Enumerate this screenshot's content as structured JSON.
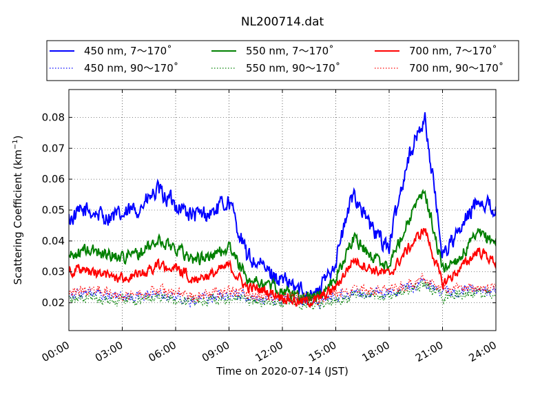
{
  "chart_data": {
    "type": "line",
    "title": "NL200714.dat",
    "xlabel": "Time on 2020-07-14 (JST)",
    "ylabel_main": "Scattering Coefficient (km",
    "ylabel_sup": "−1",
    "ylabel_close": ")",
    "xlim_hours": [
      0,
      24
    ],
    "ylim": [
      0.011,
      0.089
    ],
    "x_ticks": [
      "00:00",
      "03:00",
      "06:00",
      "09:00",
      "12:00",
      "15:00",
      "18:00",
      "21:00",
      "24:00"
    ],
    "x_tick_hours": [
      0,
      3,
      6,
      9,
      12,
      15,
      18,
      21,
      24
    ],
    "y_ticks": [
      "0.02",
      "0.03",
      "0.04",
      "0.05",
      "0.06",
      "0.07",
      "0.08"
    ],
    "y_tick_values": [
      0.02,
      0.03,
      0.04,
      0.05,
      0.06,
      0.07,
      0.08
    ],
    "grid": true,
    "legend_position": "top",
    "key_hours": [
      0,
      1,
      2,
      3,
      4,
      5,
      6,
      7,
      8,
      9,
      10,
      11,
      12,
      13,
      14,
      15,
      16,
      17,
      18,
      19,
      20,
      21,
      22,
      23,
      24
    ],
    "series": [
      {
        "name": "450 nm, 7～170˚",
        "color": "#0000ff",
        "style": "solid",
        "noise": 0.0025,
        "values": [
          0.047,
          0.05,
          0.048,
          0.048,
          0.051,
          0.056,
          0.052,
          0.048,
          0.049,
          0.053,
          0.035,
          0.031,
          0.027,
          0.024,
          0.023,
          0.034,
          0.056,
          0.044,
          0.038,
          0.066,
          0.08,
          0.036,
          0.043,
          0.054,
          0.05
        ]
      },
      {
        "name": "450 nm, 90～170˚",
        "color": "#0000ff",
        "style": "dotted",
        "noise": 0.0015,
        "values": [
          0.023,
          0.023,
          0.022,
          0.022,
          0.022,
          0.023,
          0.022,
          0.021,
          0.022,
          0.023,
          0.022,
          0.021,
          0.021,
          0.021,
          0.02,
          0.022,
          0.023,
          0.023,
          0.023,
          0.025,
          0.027,
          0.023,
          0.024,
          0.024,
          0.024
        ]
      },
      {
        "name": "550 nm, 7～170˚",
        "color": "#008000",
        "style": "solid",
        "noise": 0.0018,
        "values": [
          0.035,
          0.037,
          0.036,
          0.035,
          0.036,
          0.04,
          0.038,
          0.034,
          0.035,
          0.038,
          0.028,
          0.026,
          0.024,
          0.022,
          0.022,
          0.028,
          0.041,
          0.035,
          0.032,
          0.046,
          0.056,
          0.031,
          0.035,
          0.042,
          0.04
        ]
      },
      {
        "name": "550 nm, 90～170˚",
        "color": "#008000",
        "style": "dotted",
        "noise": 0.0015,
        "values": [
          0.021,
          0.022,
          0.021,
          0.021,
          0.021,
          0.022,
          0.021,
          0.02,
          0.021,
          0.022,
          0.021,
          0.02,
          0.02,
          0.02,
          0.019,
          0.021,
          0.022,
          0.022,
          0.022,
          0.024,
          0.026,
          0.022,
          0.023,
          0.023,
          0.023
        ]
      },
      {
        "name": "700 nm, 7～170˚",
        "color": "#ff0000",
        "style": "solid",
        "noise": 0.0015,
        "values": [
          0.031,
          0.03,
          0.029,
          0.028,
          0.029,
          0.032,
          0.031,
          0.028,
          0.029,
          0.032,
          0.025,
          0.024,
          0.022,
          0.02,
          0.021,
          0.025,
          0.034,
          0.031,
          0.029,
          0.037,
          0.044,
          0.026,
          0.031,
          0.037,
          0.033
        ]
      },
      {
        "name": "700 nm, 90～170˚",
        "color": "#ff0000",
        "style": "dotted",
        "noise": 0.0015,
        "values": [
          0.024,
          0.024,
          0.024,
          0.023,
          0.023,
          0.024,
          0.023,
          0.022,
          0.023,
          0.024,
          0.023,
          0.022,
          0.022,
          0.022,
          0.021,
          0.023,
          0.024,
          0.024,
          0.024,
          0.026,
          0.028,
          0.024,
          0.025,
          0.025,
          0.025
        ]
      }
    ]
  }
}
